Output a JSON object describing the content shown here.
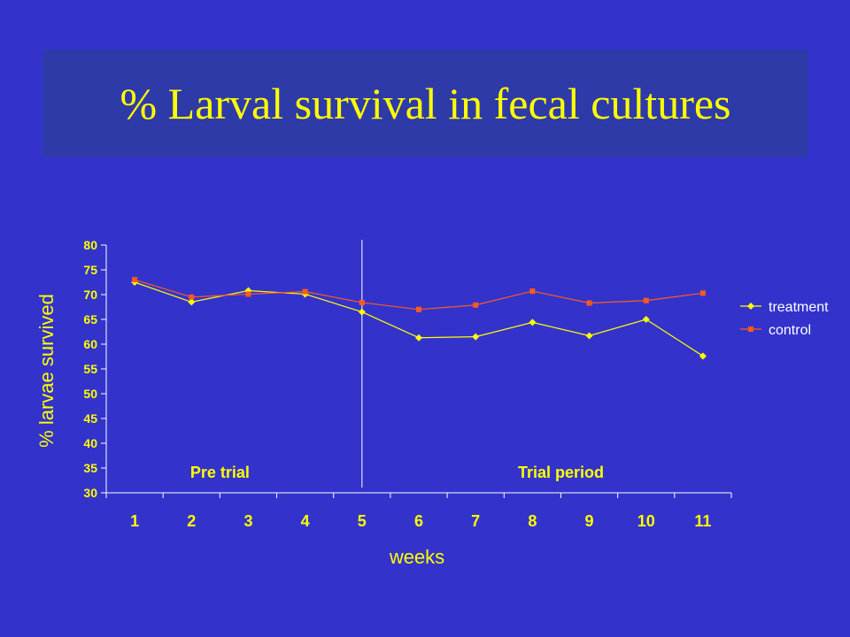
{
  "slide": {
    "title": "% Larval survival in fecal cultures"
  },
  "colors": {
    "background": "#3333cc",
    "title_box": "#2e3aa8",
    "text": "#ffff00",
    "treatment": "#ffff00",
    "control": "#ff5a1e"
  },
  "chart_data": {
    "type": "line",
    "xlabel": "weeks",
    "ylabel": "% larvae survived",
    "ylim": [
      30,
      80
    ],
    "ytick_step": 5,
    "x": [
      1,
      2,
      3,
      4,
      5,
      6,
      7,
      8,
      9,
      10,
      11
    ],
    "series": [
      {
        "name": "treatment",
        "marker": "diamond",
        "values": [
          72.5,
          68.5,
          70.8,
          70.1,
          66.5,
          61.3,
          61.5,
          64.4,
          61.7,
          65.0,
          57.6
        ]
      },
      {
        "name": "control",
        "marker": "square",
        "values": [
          73.0,
          69.5,
          70.1,
          70.6,
          68.4,
          67.0,
          67.9,
          70.7,
          68.3,
          68.8,
          70.3
        ]
      }
    ],
    "legend_position": "right",
    "divider_between_x": [
      4.5,
      5.5
    ],
    "annotations": [
      "Pre trial",
      "Trial period"
    ]
  }
}
